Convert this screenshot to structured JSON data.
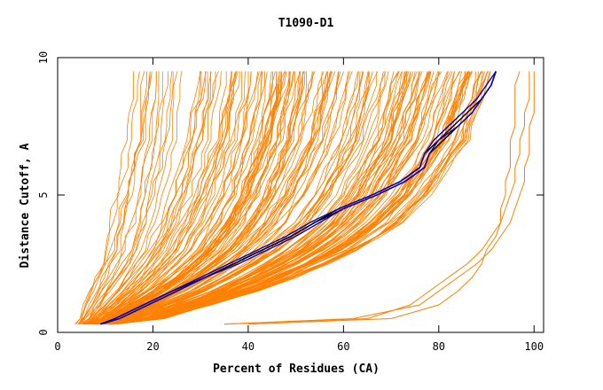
{
  "chart_data": {
    "type": "line",
    "title": "T1090-D1",
    "xlabel": "Percent of Residues (CA)",
    "ylabel": "Distance Cutoff, A",
    "xlim": [
      0,
      102
    ],
    "ylim": [
      0,
      10
    ],
    "x_ticks": [
      0,
      20,
      40,
      60,
      80,
      100
    ],
    "y_ticks": [
      0,
      5,
      10
    ],
    "grid": false,
    "legend": "none",
    "colors": {
      "bundle": "#ff8000",
      "highlight_blue": "#0000cc",
      "highlight_black": "#000000",
      "axes": "#000000"
    },
    "cutoffs": [
      0.3,
      0.5,
      1.0,
      1.5,
      2.0,
      2.5,
      3.0,
      3.5,
      4.0,
      4.5,
      5.0,
      5.5,
      6.0,
      6.5,
      7.0,
      7.5,
      8.0,
      8.5,
      9.0,
      9.5
    ],
    "highlight_series": [
      {
        "color": "#000000",
        "percents": [
          9,
          12,
          18,
          24,
          31,
          37,
          43,
          49,
          54,
          59,
          66,
          72,
          76,
          77,
          80,
          83,
          86,
          89,
          91,
          92
        ]
      },
      {
        "color": "#000000",
        "percents": [
          9,
          13,
          19,
          25,
          31,
          37,
          43,
          49,
          54,
          60,
          67,
          73,
          77,
          78,
          81,
          84,
          87,
          89,
          91,
          92
        ]
      },
      {
        "color": "#0000cc",
        "percents": [
          9,
          12,
          18,
          24,
          30,
          36,
          42,
          48,
          53,
          59,
          66,
          72,
          76,
          77,
          79,
          82,
          85,
          88,
          90,
          92
        ]
      },
      {
        "color": "#0000cc",
        "percents": [
          9,
          13,
          19,
          25,
          31,
          38,
          44,
          50,
          55,
          60,
          67,
          73,
          77,
          78,
          80,
          84,
          87,
          89,
          91,
          92
        ]
      }
    ],
    "outlier_series": [
      {
        "color": "#ff8000",
        "percents": [
          35,
          65,
          74,
          78,
          82,
          86,
          89,
          91,
          93,
          94,
          95,
          96,
          96,
          97,
          97,
          98,
          98,
          99,
          99,
          99
        ]
      },
      {
        "color": "#ff8000",
        "percents": [
          40,
          70,
          80,
          84,
          87,
          89,
          90,
          92,
          93,
          93,
          94,
          94,
          95,
          95,
          95,
          96,
          96,
          96,
          96,
          97
        ]
      },
      {
        "color": "#ff8000",
        "percents": [
          35,
          62,
          76,
          80,
          84,
          88,
          91,
          93,
          95,
          96,
          97,
          98,
          98,
          99,
          99,
          99,
          100,
          100,
          100,
          100
        ]
      }
    ],
    "bundle_envelope": {
      "count": 180,
      "lower_percents": [
        4,
        4,
        5,
        6,
        7,
        8,
        9,
        9,
        10,
        10,
        11,
        11,
        12,
        12,
        13,
        13,
        13,
        14,
        14,
        14
      ],
      "upper_percents": [
        12,
        22,
        32,
        42,
        50,
        57,
        63,
        68,
        72,
        75,
        78,
        80,
        82,
        84,
        86,
        87,
        88,
        89,
        90,
        91
      ]
    }
  }
}
